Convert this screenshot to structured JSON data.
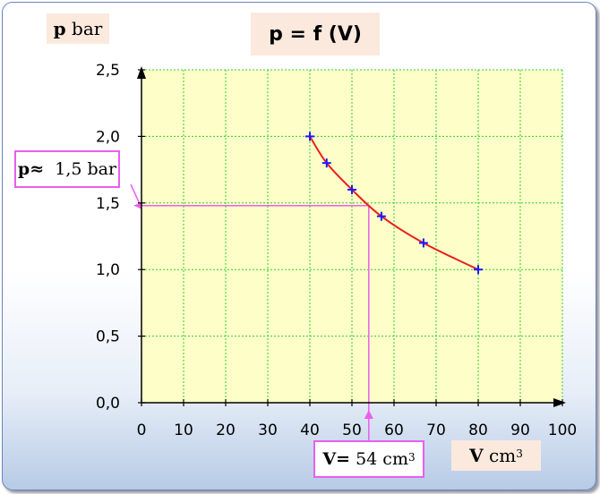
{
  "chart_data": {
    "type": "scatter",
    "title": "p = f (V)",
    "xlabel": {
      "symbol": "V",
      "unit": "cm",
      "exponent": "3"
    },
    "ylabel": {
      "symbol": "p",
      "unit": "bar"
    },
    "xlim": [
      0,
      100
    ],
    "ylim": [
      0,
      2.5
    ],
    "x_ticks": [
      "0",
      "10",
      "20",
      "30",
      "40",
      "50",
      "60",
      "70",
      "80",
      "90",
      "100"
    ],
    "y_ticks": [
      "0,0",
      "0,5",
      "1,0",
      "1,5",
      "2,0",
      "2,5"
    ],
    "x_tick_values": [
      0,
      10,
      20,
      30,
      40,
      50,
      60,
      70,
      80,
      90,
      100
    ],
    "y_tick_values": [
      0,
      0.5,
      1.0,
      1.5,
      2.0,
      2.5
    ],
    "grid": true,
    "series": [
      {
        "x": [
          40,
          44,
          50,
          57,
          67,
          80
        ],
        "y": [
          2.0,
          1.8,
          1.6,
          1.4,
          1.2,
          1.0
        ],
        "marker": "plus",
        "marker_color": "#1a1aff",
        "line_color": "#e8201c"
      }
    ],
    "reading": {
      "x": 54,
      "y": 1.48
    },
    "annotations": {
      "p_reading": {
        "prefix": "p≈",
        "value": "1,5 bar"
      },
      "v_reading": {
        "prefix": "V=",
        "value": "54 cm",
        "exponent": "3"
      }
    },
    "colors": {
      "plot_bg": "#fefec8",
      "grid": "#33cc33",
      "curve": "#e8201c",
      "marker": "#1a1aff",
      "reading_lines": "#ea5ef0",
      "label_bg": "#fbe9de"
    }
  }
}
